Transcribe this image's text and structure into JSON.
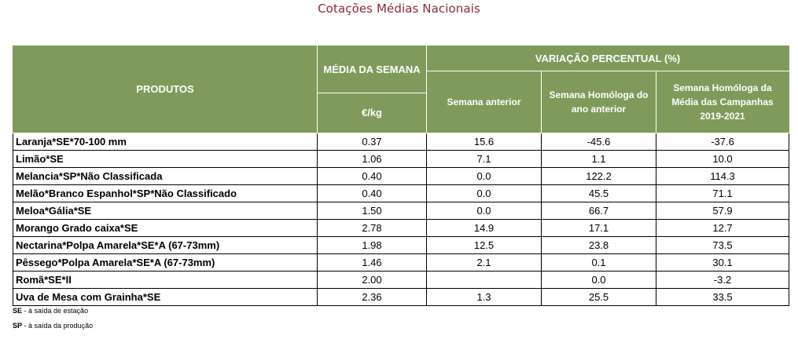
{
  "title": "Cotações Médias Nacionais",
  "header": {
    "produtos": "PRODUTOS",
    "media_semana": "MÉDIA DA SEMANA",
    "unit": "€/kg",
    "variacao": "VARIAÇÃO PERCENTUAL (%)",
    "semana_anterior": "Semana anterior",
    "semana_homologa": "Semana Homóloga do ano anterior",
    "semana_homologa_campanhas": "Semana Homóloga da Média das Campanhas 2019-2021"
  },
  "rows": [
    {
      "product": "Laranja*SE*70-100 mm",
      "media": "0.37",
      "anterior": "15.6",
      "homologa": "-45.6",
      "campanhas": "-37.6"
    },
    {
      "product": "Limão*SE",
      "media": "1.06",
      "anterior": "7.1",
      "homologa": "1.1",
      "campanhas": "10.0"
    },
    {
      "product": "Melancia*SP*Não Classificada",
      "media": "0.40",
      "anterior": "0.0",
      "homologa": "122.2",
      "campanhas": "114.3"
    },
    {
      "product": "Melão*Branco Espanhol*SP*Não Classificado",
      "media": "0.40",
      "anterior": "0.0",
      "homologa": "45.5",
      "campanhas": "71.1"
    },
    {
      "product": "Meloa*Gália*SE",
      "media": "1.50",
      "anterior": "0.0",
      "homologa": "66.7",
      "campanhas": "57.9"
    },
    {
      "product": "Morango Grado caixa*SE",
      "media": "2.78",
      "anterior": "14.9",
      "homologa": "17.1",
      "campanhas": "12.7"
    },
    {
      "product": "Nectarina*Polpa Amarela*SE*A (67-73mm)",
      "media": "1.98",
      "anterior": "12.5",
      "homologa": "23.8",
      "campanhas": "73.5"
    },
    {
      "product": "Pêssego*Polpa Amarela*SE*A (67-73mm)",
      "media": "1.46",
      "anterior": "2.1",
      "homologa": "0.1",
      "campanhas": "30.1"
    },
    {
      "product": "Romã*SE*II",
      "media": "2.00",
      "anterior": "",
      "homologa": "0.0",
      "campanhas": "-3.2"
    },
    {
      "product": "Uva de Mesa com Grainha*SE",
      "media": "2.36",
      "anterior": "1.3",
      "homologa": "25.5",
      "campanhas": "33.5"
    }
  ],
  "footnotes": [
    {
      "code": "SE",
      "text": " - à saída de estação"
    },
    {
      "code": "SP",
      "text": " - à saída da produção"
    }
  ]
}
